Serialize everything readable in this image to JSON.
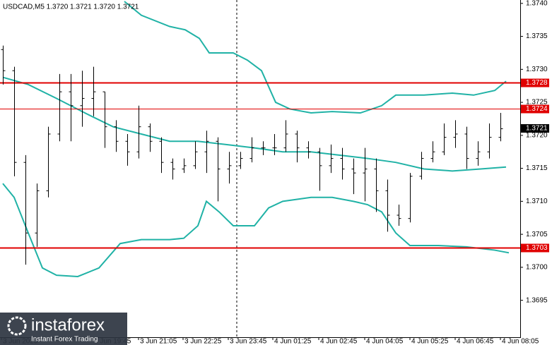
{
  "chart_data": {
    "type": "ohlc",
    "title": "USDCAD,M5  1.3720 1.3721 1.3720 1.3721",
    "open": [
      1.3733,
      1.37298,
      1.37159,
      1.37052,
      1.37116,
      1.37202,
      1.37266,
      1.37245,
      1.37256,
      1.37266,
      1.37213,
      1.37191,
      1.37175,
      1.37213,
      1.37191,
      1.37159,
      1.37149,
      1.37154,
      1.37175,
      1.37191,
      1.37149,
      1.37154,
      1.37165,
      1.37181,
      1.37181,
      1.37181,
      1.37202,
      1.37181,
      1.37175,
      1.37154,
      1.37165,
      1.37149,
      1.37143,
      1.37149,
      1.37116,
      1.37079,
      1.37074,
      1.37138,
      1.37165,
      1.37175,
      1.37197,
      1.37202,
      1.37165,
      1.37175,
      1.37197
    ],
    "high": [
      1.37336,
      1.37304,
      1.3717,
      1.37127,
      1.37213,
      1.37293,
      1.37293,
      1.37298,
      1.37304,
      1.37266,
      1.37223,
      1.37202,
      1.37245,
      1.37218,
      1.37197,
      1.37165,
      1.37165,
      1.37191,
      1.37207,
      1.37197,
      1.37175,
      1.37175,
      1.37197,
      1.37191,
      1.37202,
      1.37223,
      1.37207,
      1.37191,
      1.37181,
      1.37186,
      1.37181,
      1.37165,
      1.37181,
      1.37165,
      1.37133,
      1.37095,
      1.37143,
      1.37175,
      1.37191,
      1.37218,
      1.37223,
      1.37213,
      1.37191,
      1.37218,
      1.37234
    ],
    "low": [
      1.37277,
      1.37138,
      1.37004,
      1.37031,
      1.37106,
      1.37191,
      1.37191,
      1.37213,
      1.37229,
      1.37181,
      1.37175,
      1.37154,
      1.37165,
      1.37175,
      1.37143,
      1.37133,
      1.37143,
      1.37149,
      1.37143,
      1.371,
      1.37127,
      1.37149,
      1.37159,
      1.3717,
      1.3717,
      1.37175,
      1.37159,
      1.37165,
      1.37116,
      1.37143,
      1.37133,
      1.37111,
      1.371,
      1.37084,
      1.37054,
      1.37063,
      1.37068,
      1.37133,
      1.37159,
      1.3717,
      1.37181,
      1.37149,
      1.37154,
      1.37165,
      1.37191
    ],
    "close": [
      1.37298,
      1.37159,
      1.37052,
      1.37116,
      1.37202,
      1.37266,
      1.37245,
      1.37256,
      1.37266,
      1.37213,
      1.37191,
      1.37175,
      1.37213,
      1.37191,
      1.37159,
      1.37149,
      1.37154,
      1.37175,
      1.37191,
      1.37149,
      1.37154,
      1.37165,
      1.37181,
      1.37181,
      1.37181,
      1.37202,
      1.37181,
      1.37175,
      1.37154,
      1.37165,
      1.37149,
      1.37143,
      1.37149,
      1.37116,
      1.37079,
      1.37074,
      1.37138,
      1.37165,
      1.37175,
      1.37197,
      1.37202,
      1.37165,
      1.37175,
      1.37197,
      1.3721
    ],
    "bar_color": "#000000",
    "bands": [
      {
        "x": [
          10.75,
          12.25,
          14.75,
          16.125,
          17.375,
          18.25,
          20.375,
          21.625,
          22.875,
          24.125,
          25.375,
          27.25,
          29.125,
          31.625,
          33.5,
          34.75,
          37.25,
          39.75,
          41.625,
          43.5,
          44.5
        ],
        "values": [
          1.37403,
          1.37382,
          1.37365,
          1.3736,
          1.37347,
          1.37325,
          1.37325,
          1.37314,
          1.37298,
          1.3725,
          1.3724,
          1.37234,
          1.37236,
          1.37234,
          1.37245,
          1.37261,
          1.37261,
          1.37264,
          1.37261,
          1.37268,
          1.37282
        ]
      },
      {
        "x": [
          0,
          2.25,
          4.75,
          7.25,
          9.75,
          12.25,
          14.75,
          17.25,
          19.75,
          22.25,
          24.75,
          27.25,
          29.75,
          32.25,
          34.75,
          37.25,
          39.75,
          42.25,
          44.5
        ],
        "values": [
          1.37288,
          1.37277,
          1.37256,
          1.37234,
          1.37213,
          1.37202,
          1.37191,
          1.37191,
          1.37186,
          1.37181,
          1.37175,
          1.37175,
          1.3717,
          1.37165,
          1.37159,
          1.37149,
          1.37146,
          1.37149,
          1.37152
        ]
      },
      {
        "x": [
          0,
          1,
          2.25,
          3.5,
          4.75,
          6.625,
          8.5,
          10.375,
          12.25,
          14.75,
          16,
          17.25,
          18,
          19.125,
          20.375,
          22.25,
          23.5,
          24.75,
          27.25,
          29.125,
          31,
          32.25,
          33.5,
          34.75,
          36,
          38.5,
          41,
          43.5,
          44.75
        ],
        "values": [
          1.37127,
          1.37106,
          1.37052,
          1.36999,
          1.36988,
          1.36986,
          1.36999,
          1.37036,
          1.37042,
          1.37042,
          1.37044,
          1.37063,
          1.371,
          1.37084,
          1.37063,
          1.37063,
          1.3709,
          1.371,
          1.37106,
          1.37106,
          1.371,
          1.37095,
          1.37084,
          1.37052,
          1.37033,
          1.37033,
          1.37031,
          1.37026,
          1.37022
        ]
      }
    ],
    "band_color": "#20b2a6",
    "levels": [
      1.3728,
      1.3724,
      1.3703
    ],
    "level_color": "#e00000",
    "last_price": 1.3721,
    "xlim": [
      -0.25,
      45.6875
    ],
    "ylim": [
      1.36894,
      1.37403
    ],
    "yticks": [
      {
        "value": 1.374,
        "label": "1.3740"
      },
      1.3735,
      {
        "value": 1.373,
        "label": "1.3730"
      },
      1.3725,
      {
        "value": 1.372,
        "label": "1.3720"
      },
      1.3715,
      {
        "value": 1.371,
        "label": "1.3710"
      },
      1.3705,
      {
        "value": 1.37,
        "label": "1.3700"
      },
      1.3695
    ],
    "xticks": [
      {
        "value": -0.125,
        "label": "3 Jun 2025"
      },
      {
        "value": 7.9375,
        "label": "3 Jun 19:45"
      },
      {
        "value": 12,
        "label": "3 Jun 21:05"
      },
      {
        "value": 15.9375,
        "label": "3 Jun 22:25"
      },
      {
        "value": 19.9375,
        "label": "3 Jun 23:45"
      },
      {
        "value": 23.875,
        "label": "4 Jun 01:25"
      },
      {
        "value": 27.9375,
        "label": "4 Jun 02:45"
      },
      {
        "value": 32,
        "label": "4 Jun 04:05"
      },
      {
        "value": 36,
        "label": "4 Jun 05:25"
      },
      {
        "value": 40,
        "label": "4 Jun 06:45"
      },
      {
        "value": 44,
        "label": "4 Jun 08:05"
      }
    ],
    "watermark": {
      "name": "instaforex",
      "tagline": "Instant Forex Trading"
    }
  }
}
